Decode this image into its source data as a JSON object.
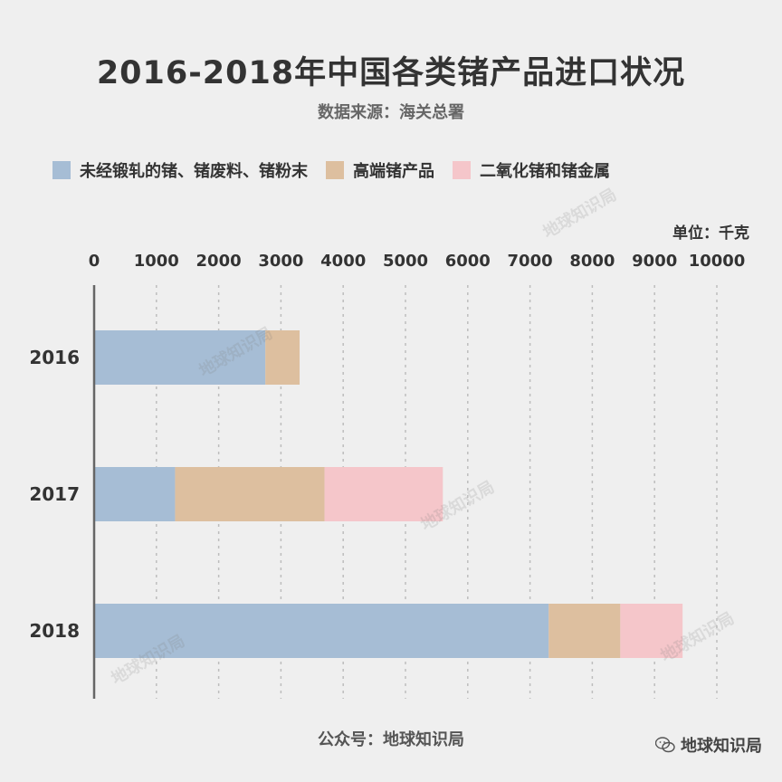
{
  "title": "2016-2018年中国各类锗产品进口状况",
  "subtitle": "数据来源：海关总署",
  "unit": "单位：千克",
  "footer": "公众号：地球知识局",
  "brand": "地球知识局",
  "watermark": "地球知识局",
  "colors": {
    "s1": "#a6bdd5",
    "s2": "#ddbf9f",
    "s3": "#f5c6ca",
    "grid": "#bdbdbd",
    "axis": "#666666"
  },
  "chart_data": {
    "type": "bar",
    "orientation": "horizontal",
    "stacked": true,
    "categories": [
      "2016",
      "2017",
      "2018"
    ],
    "series": [
      {
        "name": "未经锻轧的锗、锗废料、锗粉末",
        "values": [
          2750,
          1300,
          7300
        ]
      },
      {
        "name": "高端锗产品",
        "values": [
          550,
          2400,
          1150
        ]
      },
      {
        "name": "二氧化锗和锗金属",
        "values": [
          0,
          1900,
          1000
        ]
      }
    ],
    "xticks": [
      "0",
      "1000",
      "2000",
      "3000",
      "4000",
      "5000",
      "6000",
      "7000",
      "8000",
      "9000",
      "10000"
    ],
    "xlim": [
      0,
      10000
    ],
    "grid": true,
    "legend_position": "top"
  }
}
